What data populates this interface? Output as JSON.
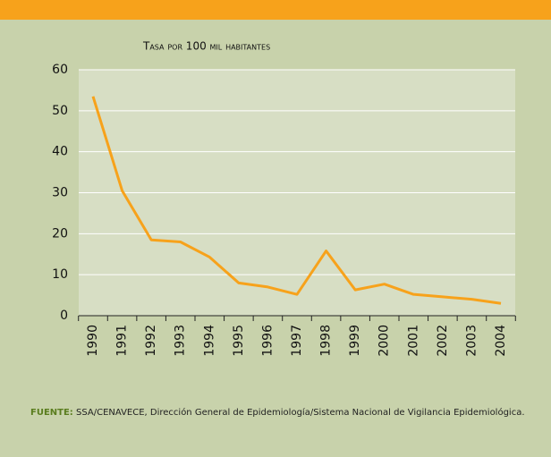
{
  "chart_data": {
    "type": "line",
    "title": "Tasa por 100 mil habitantes",
    "categories": [
      "1990",
      "1991",
      "1992",
      "1993",
      "1994",
      "1995",
      "1996",
      "1997",
      "1998",
      "1999",
      "2000",
      "2001",
      "2002",
      "2003",
      "2004"
    ],
    "series": [
      {
        "name": "Tasa",
        "color": "#f7a21b",
        "values": [
          53.5,
          30.5,
          18.5,
          18,
          14.3,
          8,
          7,
          5.2,
          15.8,
          6.3,
          7.7,
          5.2,
          4.6,
          4,
          3
        ]
      }
    ],
    "ylim": [
      0,
      60
    ],
    "yticks": [
      0,
      10,
      20,
      30,
      40,
      50,
      60
    ],
    "grid": true,
    "source_label": "FUENTE:",
    "source_text": "SSA/CENAVECE, Dirección General de Epidemiología/Sistema Nacional de Vigilancia Epidemiológica."
  }
}
